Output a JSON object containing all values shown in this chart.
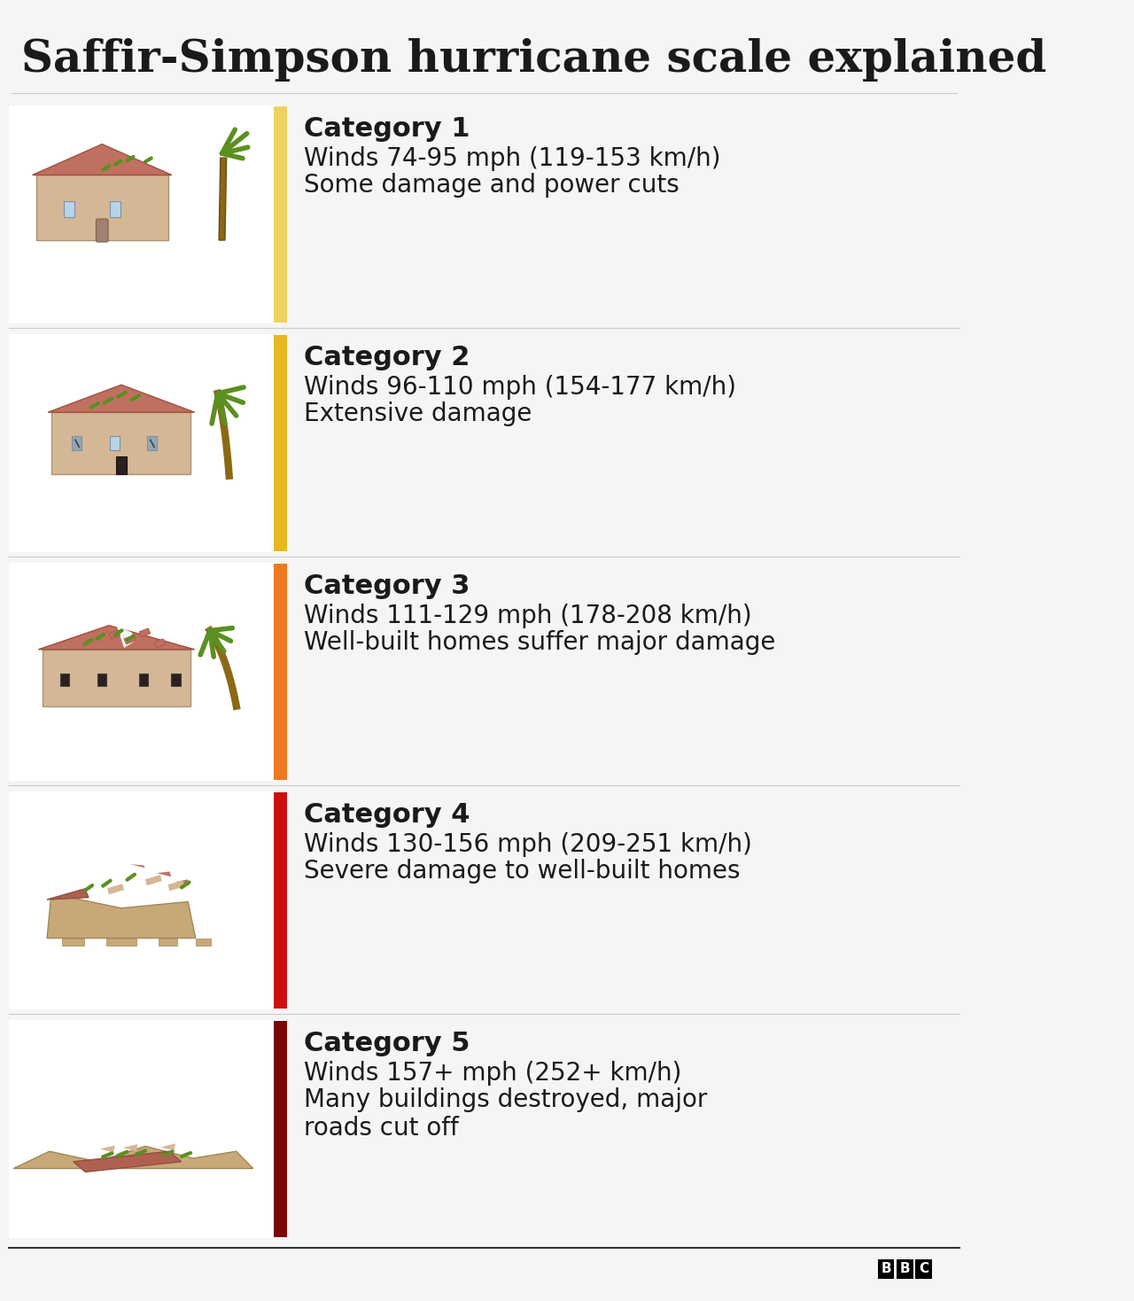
{
  "title": "Saffir-Simpson hurricane scale explained",
  "title_fontsize": 36,
  "bg_color": "#f5f5f5",
  "panel_bg": "#ffffff",
  "text_color": "#1a1a1a",
  "categories": [
    {
      "number": 1,
      "label": "Category 1",
      "wind_line": "Winds 74-95 mph (119-153 km/h)",
      "desc_line": "Some damage and power cuts",
      "bar_color": "#f0d060",
      "bar_color2": "#e8c840"
    },
    {
      "number": 2,
      "label": "Category 2",
      "wind_line": "Winds 96-110 mph (154-177 km/h)",
      "desc_line": "Extensive damage",
      "bar_color": "#e8b820",
      "bar_color2": "#d4a010"
    },
    {
      "number": 3,
      "label": "Category 3",
      "wind_line": "Winds 111-129 mph (178-208 km/h)",
      "desc_line": "Well-built homes suffer major damage",
      "bar_color": "#f07820",
      "bar_color2": "#e06010"
    },
    {
      "number": 4,
      "label": "Category 4",
      "wind_line": "Winds 130-156 mph (209-251 km/h)",
      "desc_line": "Severe damage to well-built homes",
      "bar_color": "#cc1010",
      "bar_color2": "#aa0808"
    },
    {
      "number": 5,
      "label": "Category 5",
      "wind_line": "Winds 157+ mph (252+ km/h)",
      "desc_line": "Many buildings destroyed, major\nroads cut off",
      "bar_color": "#7a0808",
      "bar_color2": "#600000"
    }
  ],
  "bbc_logo_color": "#000000",
  "separator_color": "#333333",
  "label_fontsize": 22,
  "wind_fontsize": 20,
  "desc_fontsize": 20
}
